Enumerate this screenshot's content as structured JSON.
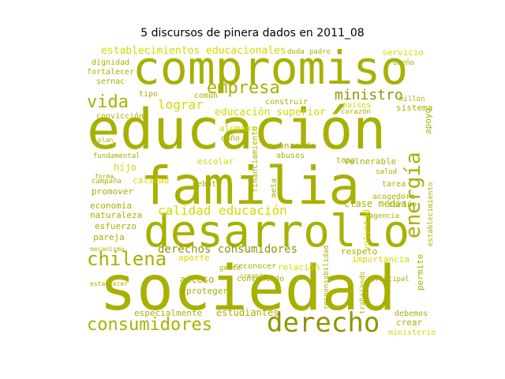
{
  "title": "5 discursos de pinera dados en 2011_08",
  "palette": {
    "olive": "#a8b000",
    "yellow": "#d6d800",
    "dark": "#8f9600"
  },
  "words": [
    {
      "text": "compromiso"
    },
    {
      "text": "educación"
    },
    {
      "text": "familia"
    },
    {
      "text": "desarrollo"
    },
    {
      "text": "sociedad"
    },
    {
      "text": "derecho"
    },
    {
      "text": "consumidores"
    },
    {
      "text": "chilena"
    },
    {
      "text": "vida"
    },
    {
      "text": "empresa"
    },
    {
      "text": "energía"
    },
    {
      "text": "establecimientos educacionales"
    },
    {
      "text": "ministro"
    },
    {
      "text": "lograr"
    },
    {
      "text": "educación superior"
    },
    {
      "text": "calidad educación"
    },
    {
      "text": "derechos consumidores"
    },
    {
      "text": "servicio"
    },
    {
      "text": "dignidad"
    },
    {
      "text": "fortalecer"
    },
    {
      "text": "sernac"
    },
    {
      "text": "convicción"
    },
    {
      "text": "común"
    },
    {
      "text": "tipo"
    },
    {
      "text": "construir"
    },
    {
      "text": "países"
    },
    {
      "text": "sistema"
    },
    {
      "text": "corazón"
    },
    {
      "text": "escolar"
    },
    {
      "text": "hijo"
    },
    {
      "text": "calidad"
    },
    {
      "text": "promover"
    },
    {
      "text": "economía"
    },
    {
      "text": "naturaleza"
    },
    {
      "text": "esfuerzo"
    },
    {
      "text": "pareja"
    },
    {
      "text": "aporte"
    },
    {
      "text": "acceso"
    },
    {
      "text": "proteger"
    },
    {
      "text": "estudiantes"
    },
    {
      "text": "especialmente"
    },
    {
      "text": "respeto"
    },
    {
      "text": "importancia"
    },
    {
      "text": "relación"
    },
    {
      "text": "clase media"
    },
    {
      "text": "vulnerable"
    },
    {
      "text": "tarea"
    },
    {
      "text": "acogedora"
    },
    {
      "text": "cariño"
    },
    {
      "text": "agencia"
    },
    {
      "text": "voluntad"
    },
    {
      "text": "avanzando"
    },
    {
      "text": "abusos"
    },
    {
      "text": "financiamiento"
    },
    {
      "text": "crear"
    },
    {
      "text": "ministerio"
    },
    {
      "text": "debemos"
    },
    {
      "text": "fundamental"
    },
    {
      "text": "apoyo"
    },
    {
      "text": "permite"
    },
    {
      "text": "establecimiento"
    },
    {
      "text": "duda"
    },
    {
      "text": "padre"
    },
    {
      "text": "daño"
    },
    {
      "text": "debate"
    },
    {
      "text": "convencido"
    },
    {
      "text": "reconocer"
    },
    {
      "text": "tema"
    },
    {
      "text": "salud"
    },
    {
      "text": "responsabilidad"
    },
    {
      "text": "dueño"
    },
    {
      "text": "millón"
    },
    {
      "text": "alumnos"
    },
    {
      "text": "meta"
    },
    {
      "text": "principal"
    },
    {
      "text": "trabajando"
    },
    {
      "text": "gente"
    },
    {
      "text": "establecer"
    },
    {
      "text": "campaña"
    },
    {
      "text": "mecanismo"
    },
    {
      "text": "creando"
    },
    {
      "text": "forma"
    },
    {
      "text": "plan"
    }
  ]
}
